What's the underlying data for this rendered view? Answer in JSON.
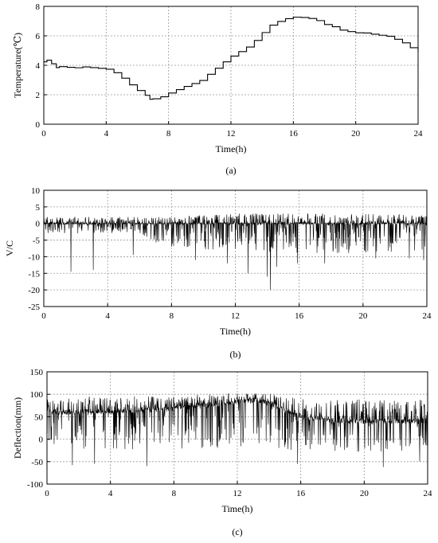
{
  "chart_data": [
    {
      "type": "line",
      "panel_label": "(a)",
      "xlabel": "Time(h)",
      "ylabel": "Temperature(℃)",
      "xlim": [
        0,
        24
      ],
      "ylim": [
        0,
        8
      ],
      "x_ticks": [
        0,
        4,
        8,
        12,
        16,
        20,
        24
      ],
      "y_ticks": [
        0,
        2,
        4,
        6,
        8
      ],
      "grid": true,
      "series": [
        {
          "x": [
            0,
            0.2,
            0.5,
            0.8,
            1.0,
            1.5,
            2.0,
            2.5,
            3.0,
            3.5,
            4.0,
            4.5,
            5.0,
            5.5,
            6.0,
            6.5,
            6.8,
            7.0,
            7.5,
            8.0,
            8.5,
            9.0,
            9.5,
            10.0,
            10.5,
            11.0,
            11.5,
            12.0,
            12.5,
            13.0,
            13.5,
            14.0,
            14.5,
            15.0,
            15.5,
            16.0,
            16.5,
            17.0,
            17.5,
            18.0,
            18.5,
            19.0,
            19.5,
            20.0,
            20.5,
            21.0,
            21.5,
            22.0,
            22.5,
            23.0,
            23.5,
            24.0
          ],
          "y": [
            4.2,
            4.35,
            4.1,
            3.85,
            3.9,
            3.85,
            3.85,
            3.85,
            3.85,
            3.8,
            3.75,
            3.5,
            3.1,
            2.7,
            2.3,
            1.95,
            1.7,
            1.75,
            1.9,
            2.15,
            2.35,
            2.55,
            2.75,
            3.0,
            3.35,
            3.8,
            4.2,
            4.6,
            4.9,
            5.2,
            5.7,
            6.2,
            6.7,
            7.0,
            7.2,
            7.25,
            7.25,
            7.2,
            7.0,
            6.8,
            6.6,
            6.4,
            6.3,
            6.2,
            6.2,
            6.1,
            6.05,
            6.0,
            5.8,
            5.5,
            5.2,
            4.9
          ]
        }
      ]
    },
    {
      "type": "line",
      "panel_label": "(b)",
      "xlabel": "Time(h)",
      "ylabel": "V/C",
      "xlim": [
        0,
        24
      ],
      "ylim": [
        -25,
        10
      ],
      "x_ticks": [
        0,
        4,
        8,
        12,
        16,
        20,
        24
      ],
      "y_ticks": [
        -25,
        -20,
        -15,
        -10,
        -5,
        0,
        5,
        10
      ],
      "grid": true,
      "series": [
        {
          "baseline": 0,
          "noise_envelope": {
            "x": [
              0,
              6,
              6.5,
              8,
              12,
              16,
              20,
              24
            ],
            "upper": [
              2,
              2,
              2,
              2,
              3,
              3,
              3,
              2.5
            ],
            "lower": [
              -3,
              -3,
              -5,
              -7,
              -9,
              -9,
              -9,
              -8
            ]
          },
          "spike_x": [
            1.7,
            3.1,
            5.6,
            9.5,
            11.5,
            12.8,
            14.0,
            14.2,
            14.6,
            15.9,
            17.6,
            20.8,
            22.9,
            23.8
          ],
          "spike_y": [
            -14.5,
            -14,
            -9.5,
            -11,
            -12,
            -15,
            -16,
            -20,
            -13,
            -12,
            -12,
            -10.5,
            -10.5,
            -11
          ]
        }
      ]
    },
    {
      "type": "line",
      "panel_label": "(c)",
      "xlabel": "Time(h)",
      "ylabel": "Deflection(mm)",
      "xlim": [
        0,
        24
      ],
      "ylim": [
        -100,
        150
      ],
      "x_ticks": [
        0,
        4,
        8,
        12,
        16,
        20,
        24
      ],
      "y_ticks": [
        -100,
        -50,
        0,
        50,
        100,
        150
      ],
      "grid": true,
      "series": [
        {
          "baseline": {
            "x": [
              0,
              4,
              6,
              8,
              10,
              12,
              13,
              14,
              15,
              16,
              18,
              20,
              24
            ],
            "y": [
              60,
              62,
              65,
              68,
              75,
              85,
              85,
              80,
              65,
              50,
              42,
              40,
              40
            ]
          },
          "upper_excursion": 110,
          "lower_excursion": -45,
          "spike_x": [
            1.6,
            3.0,
            6.3,
            15.8,
            21.2,
            23.5
          ],
          "spike_y": [
            -58,
            -55,
            -60,
            -55,
            -62,
            -50
          ]
        }
      ]
    }
  ]
}
